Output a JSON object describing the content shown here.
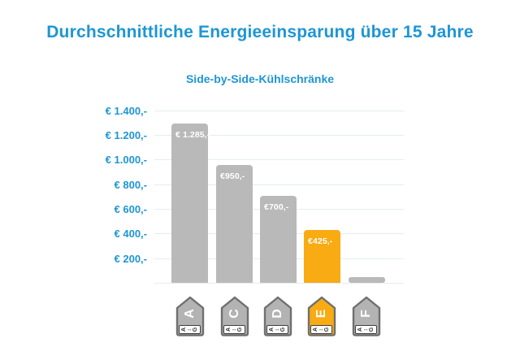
{
  "header": {
    "title": "Durchschnittliche Energieeinsparung über 15 Jahre",
    "subtitle": "Side-by-Side-Kühlschränke"
  },
  "colors": {
    "accent_blue": "#1d96d5",
    "bar_gray": "#b9b9b9",
    "bar_orange": "#f8ab12",
    "gridline": "#e4ecf2",
    "bar_label_text": "#ffffff",
    "tag_gray_fill": "#b3b3b3",
    "tag_border": "#6f6f6f",
    "scale_box_border": "#3f3f3f",
    "scale_text": "#333333"
  },
  "y_axis": {
    "tick_labels": [
      "€ 1.400,-",
      "€ 1.200,-",
      "€ 1.000,-",
      "€ 800,-",
      "€ 600,-",
      "€ 400,-",
      "€ 200,-"
    ]
  },
  "chart_data": {
    "type": "bar",
    "title": "Durchschnittliche Energieeinsparung über 15 Jahre",
    "subtitle": "Side-by-Side-Kühlschränke",
    "categories": [
      "A",
      "C",
      "D",
      "E",
      "F"
    ],
    "values": [
      1285,
      950,
      700,
      425,
      45
    ],
    "bar_labels": [
      "€ 1.285,-",
      "€950,-",
      "€700,-",
      "€425,-",
      ""
    ],
    "bar_colors": [
      "gray",
      "gray",
      "gray",
      "orange",
      "gray"
    ],
    "highlight_index": 3,
    "xlabel": "",
    "ylabel": "",
    "ylim": [
      0,
      1400
    ],
    "ytick_step": 200,
    "grid": true,
    "legend": "none"
  },
  "energy_scale": {
    "from": "A",
    "arrow": "↔",
    "to": "G"
  },
  "energy_tags": [
    {
      "letter": "A",
      "style": "gray"
    },
    {
      "letter": "C",
      "style": "gray"
    },
    {
      "letter": "D",
      "style": "gray"
    },
    {
      "letter": "E",
      "style": "orange"
    },
    {
      "letter": "F",
      "style": "gray"
    }
  ]
}
